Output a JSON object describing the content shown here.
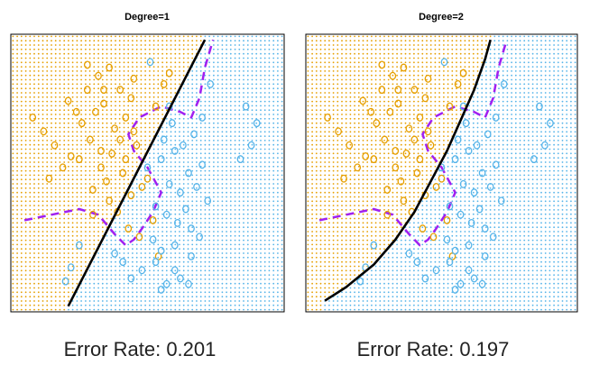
{
  "chart_data": [
    {
      "type": "scatter",
      "title": "Degree=1",
      "caption_label": "Error Rate: 0.201",
      "error_rate": 0.201,
      "xlim": [
        0,
        1
      ],
      "ylim": [
        0,
        1
      ],
      "grid_classes": {
        "orange_region": "#E69F00",
        "blue_region": "#56B4E9"
      },
      "boundary_line": {
        "color": "#000000",
        "x": [
          0.21,
          0.71
        ],
        "y": [
          0.02,
          0.98
        ]
      },
      "bayes_boundary": {
        "color": "#A020F0",
        "x": [
          0.05,
          0.15,
          0.25,
          0.32,
          0.38,
          0.42,
          0.45,
          0.48,
          0.52,
          0.55,
          0.5,
          0.45,
          0.43,
          0.47,
          0.55,
          0.62,
          0.66,
          0.69,
          0.71,
          0.74
        ],
        "y": [
          0.33,
          0.35,
          0.37,
          0.35,
          0.28,
          0.24,
          0.26,
          0.3,
          0.36,
          0.43,
          0.52,
          0.58,
          0.64,
          0.7,
          0.74,
          0.72,
          0.7,
          0.77,
          0.88,
          0.98
        ]
      },
      "series": [
        {
          "name": "orange",
          "color": "#E69F00",
          "symbol": "o",
          "x": [
            0.28,
            0.32,
            0.36,
            0.4,
            0.45,
            0.34,
            0.31,
            0.42,
            0.38,
            0.29,
            0.46,
            0.37,
            0.25,
            0.33,
            0.41,
            0.5,
            0.48,
            0.44,
            0.35,
            0.3,
            0.56,
            0.53,
            0.22,
            0.19,
            0.16,
            0.14,
            0.12,
            0.08,
            0.28,
            0.39,
            0.43,
            0.47,
            0.52,
            0.36,
            0.26,
            0.24,
            0.33,
            0.21,
            0.3,
            0.42,
            0.4,
            0.45,
            0.58,
            0.34,
            0.44,
            0.54
          ],
          "y": [
            0.89,
            0.85,
            0.88,
            0.8,
            0.84,
            0.75,
            0.72,
            0.7,
            0.66,
            0.62,
            0.6,
            0.57,
            0.55,
            0.52,
            0.5,
            0.48,
            0.45,
            0.42,
            0.47,
            0.44,
            0.82,
            0.74,
            0.56,
            0.52,
            0.6,
            0.48,
            0.65,
            0.7,
            0.8,
            0.36,
            0.3,
            0.27,
            0.33,
            0.4,
            0.68,
            0.72,
            0.58,
            0.76,
            0.35,
            0.55,
            0.62,
            0.65,
            0.86,
            0.8,
            0.77,
            0.2
          ]
        },
        {
          "name": "blue",
          "color": "#56B4E9",
          "symbol": "o",
          "x": [
            0.5,
            0.55,
            0.6,
            0.65,
            0.7,
            0.58,
            0.62,
            0.68,
            0.72,
            0.53,
            0.57,
            0.64,
            0.61,
            0.66,
            0.69,
            0.6,
            0.55,
            0.52,
            0.48,
            0.44,
            0.41,
            0.38,
            0.63,
            0.67,
            0.56,
            0.59,
            0.86,
            0.9,
            0.88,
            0.84,
            0.6,
            0.62,
            0.65,
            0.66,
            0.55,
            0.53,
            0.57,
            0.25,
            0.22,
            0.2,
            0.58,
            0.7,
            0.73,
            0.51
          ],
          "y": [
            0.52,
            0.55,
            0.58,
            0.5,
            0.53,
            0.46,
            0.43,
            0.45,
            0.4,
            0.38,
            0.35,
            0.37,
            0.32,
            0.3,
            0.27,
            0.24,
            0.22,
            0.26,
            0.15,
            0.12,
            0.18,
            0.21,
            0.6,
            0.64,
            0.62,
            0.68,
            0.74,
            0.68,
            0.6,
            0.55,
            0.15,
            0.12,
            0.1,
            0.2,
            0.08,
            0.18,
            0.1,
            0.24,
            0.16,
            0.11,
            0.74,
            0.7,
            0.82,
            0.9
          ]
        }
      ]
    },
    {
      "type": "scatter",
      "title": "Degree=2",
      "caption_label": "Error Rate: 0.197",
      "error_rate": 0.197,
      "xlim": [
        0,
        1
      ],
      "ylim": [
        0,
        1
      ],
      "grid_classes": {
        "orange_region": "#E69F00",
        "blue_region": "#56B4E9"
      },
      "boundary_line": {
        "color": "#000000",
        "x": [
          0.07,
          0.15,
          0.25,
          0.33,
          0.4,
          0.46,
          0.52,
          0.57,
          0.62,
          0.66,
          0.68
        ],
        "y": [
          0.04,
          0.09,
          0.17,
          0.26,
          0.36,
          0.47,
          0.58,
          0.69,
          0.8,
          0.91,
          0.98
        ]
      },
      "bayes_boundary": {
        "color": "#A020F0",
        "x": [
          0.05,
          0.15,
          0.25,
          0.32,
          0.38,
          0.42,
          0.45,
          0.48,
          0.52,
          0.55,
          0.5,
          0.45,
          0.43,
          0.47,
          0.55,
          0.62,
          0.66,
          0.69,
          0.71,
          0.74
        ],
        "y": [
          0.33,
          0.35,
          0.37,
          0.35,
          0.28,
          0.24,
          0.26,
          0.3,
          0.36,
          0.43,
          0.52,
          0.58,
          0.64,
          0.7,
          0.74,
          0.72,
          0.7,
          0.77,
          0.88,
          0.98
        ]
      },
      "series": [
        {
          "name": "orange",
          "color": "#E69F00",
          "symbol": "o",
          "x": [
            0.28,
            0.32,
            0.36,
            0.4,
            0.45,
            0.34,
            0.31,
            0.42,
            0.38,
            0.29,
            0.46,
            0.37,
            0.25,
            0.33,
            0.41,
            0.5,
            0.48,
            0.44,
            0.35,
            0.3,
            0.56,
            0.53,
            0.22,
            0.19,
            0.16,
            0.14,
            0.12,
            0.08,
            0.28,
            0.39,
            0.43,
            0.47,
            0.52,
            0.36,
            0.26,
            0.24,
            0.33,
            0.21,
            0.3,
            0.42,
            0.4,
            0.45,
            0.58,
            0.34,
            0.44,
            0.54
          ],
          "y": [
            0.89,
            0.85,
            0.88,
            0.8,
            0.84,
            0.75,
            0.72,
            0.7,
            0.66,
            0.62,
            0.6,
            0.57,
            0.55,
            0.52,
            0.5,
            0.48,
            0.45,
            0.42,
            0.47,
            0.44,
            0.82,
            0.74,
            0.56,
            0.52,
            0.6,
            0.48,
            0.65,
            0.7,
            0.8,
            0.36,
            0.3,
            0.27,
            0.33,
            0.4,
            0.68,
            0.72,
            0.58,
            0.76,
            0.35,
            0.55,
            0.62,
            0.65,
            0.86,
            0.8,
            0.77,
            0.2
          ]
        },
        {
          "name": "blue",
          "color": "#56B4E9",
          "symbol": "o",
          "x": [
            0.5,
            0.55,
            0.6,
            0.65,
            0.7,
            0.58,
            0.62,
            0.68,
            0.72,
            0.53,
            0.57,
            0.64,
            0.61,
            0.66,
            0.69,
            0.6,
            0.55,
            0.52,
            0.48,
            0.44,
            0.41,
            0.38,
            0.63,
            0.67,
            0.56,
            0.59,
            0.86,
            0.9,
            0.88,
            0.84,
            0.6,
            0.62,
            0.65,
            0.66,
            0.55,
            0.53,
            0.57,
            0.25,
            0.22,
            0.2,
            0.58,
            0.7,
            0.73,
            0.51
          ],
          "y": [
            0.52,
            0.55,
            0.58,
            0.5,
            0.53,
            0.46,
            0.43,
            0.45,
            0.4,
            0.38,
            0.35,
            0.37,
            0.32,
            0.3,
            0.27,
            0.24,
            0.22,
            0.26,
            0.15,
            0.12,
            0.18,
            0.21,
            0.6,
            0.64,
            0.62,
            0.68,
            0.74,
            0.68,
            0.6,
            0.55,
            0.15,
            0.12,
            0.1,
            0.2,
            0.08,
            0.18,
            0.1,
            0.24,
            0.16,
            0.11,
            0.74,
            0.7,
            0.82,
            0.9
          ]
        }
      ]
    }
  ]
}
